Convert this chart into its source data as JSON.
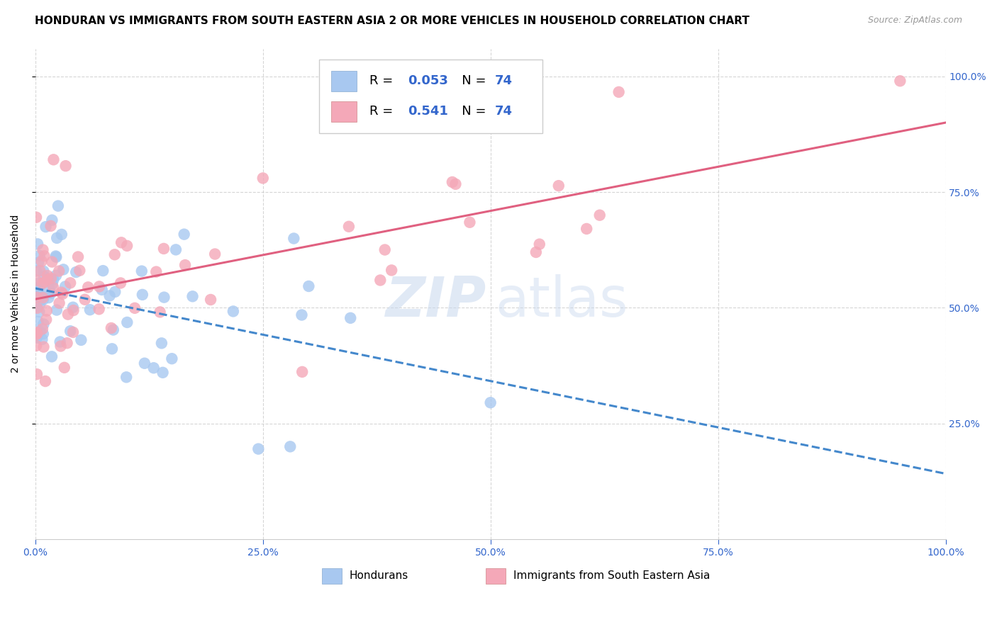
{
  "title": "HONDURAN VS IMMIGRANTS FROM SOUTH EASTERN ASIA 2 OR MORE VEHICLES IN HOUSEHOLD CORRELATION CHART",
  "source": "Source: ZipAtlas.com",
  "ylabel": "2 or more Vehicles in Household",
  "R_blue": 0.053,
  "N_blue": 74,
  "R_pink": 0.541,
  "N_pink": 74,
  "blue_color": "#a8c8f0",
  "pink_color": "#f4a8b8",
  "blue_line_color": "#4488cc",
  "pink_line_color": "#e06080",
  "axis_label_color": "#3366cc",
  "background_color": "#ffffff",
  "grid_color": "#cccccc"
}
